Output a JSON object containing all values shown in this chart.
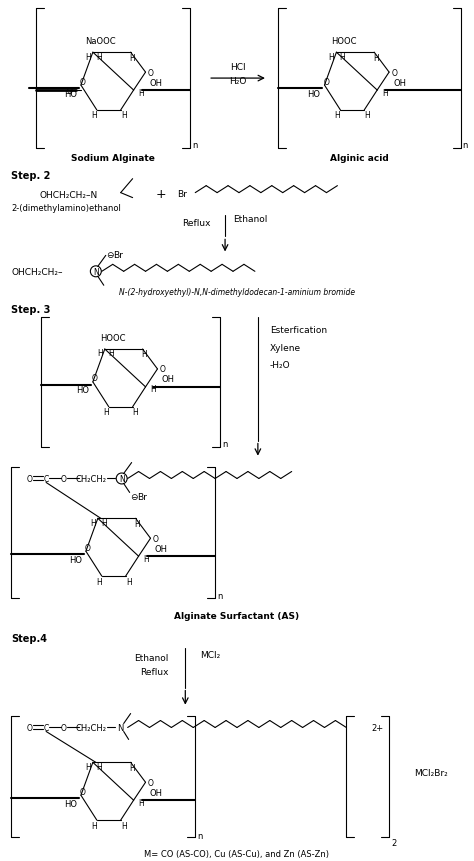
{
  "fig_width": 4.74,
  "fig_height": 8.62,
  "dpi": 100,
  "bg": "#ffffff",
  "step1": {
    "na_alginate_label": "Sodium Alginate",
    "alginic_acid_label": "Alginic acid",
    "reagent_line1": "HCl",
    "reagent_line2": "H₂O"
  },
  "step2": {
    "label": "Step. 2",
    "dmae": "2-(dimethylamino)ethanol",
    "reflux": "Reflux",
    "ethanol": "Ethanol",
    "product_label": "N-(2-hydroxyethyl)-N,N-dimethyldodecan-1-aminium bromide"
  },
  "step3": {
    "label": "Step. 3",
    "cond1": "Esterfication",
    "cond2": "Xylene",
    "cond3": "-H₂O",
    "as_label": "Alginate Surfactant (AS)"
  },
  "step4": {
    "label": "Step.4",
    "cond1": "Ethanol",
    "cond2": "Reflux",
    "reagent": "MCl₂",
    "mcl2br2": "MCl₂Br₂",
    "sub2": "2",
    "m_label": "M= CO (AS-CO), Cu (AS-Cu), and Zn (AS-Zn)"
  }
}
